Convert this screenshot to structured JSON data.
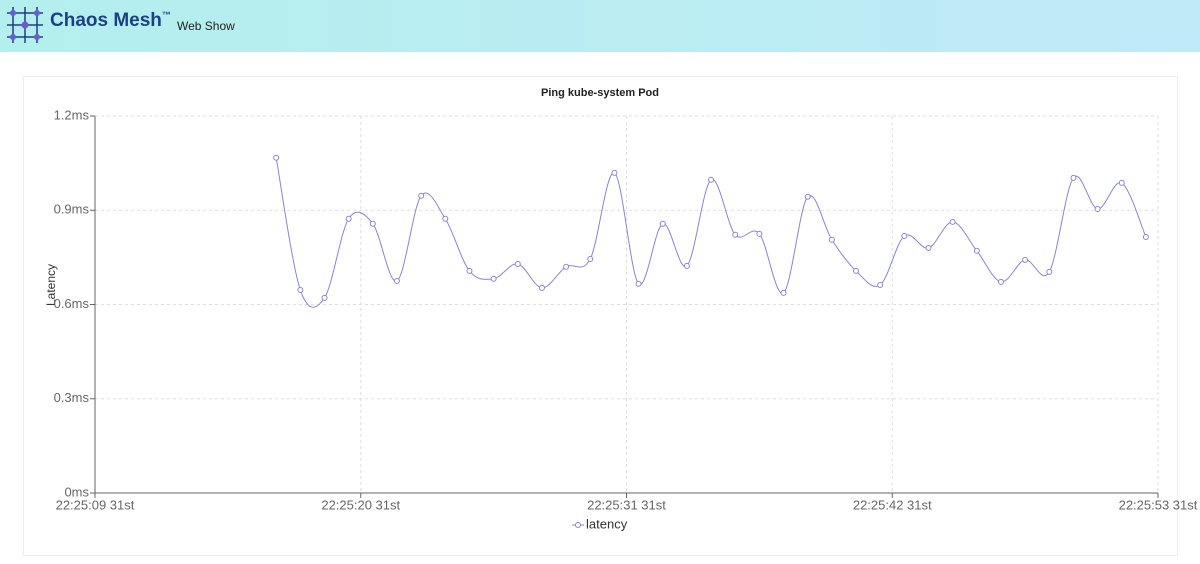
{
  "header": {
    "brand": "Chaos Mesh",
    "trademark": "™",
    "link": "Web Show"
  },
  "chart_data": {
    "type": "line",
    "title": "Ping kube-system Pod",
    "y_label": "Latency",
    "xticks": [
      {
        "value": 9,
        "label": "22:25:09 31st"
      },
      {
        "value": 20,
        "label": "22:25:20 31st"
      },
      {
        "value": 31,
        "label": "22:25:31 31st"
      },
      {
        "value": 42,
        "label": "22:25:42 31st"
      },
      {
        "value": 53,
        "label": "22:25:53 31st"
      }
    ],
    "xlim": [
      9,
      53
    ],
    "yticks": [
      {
        "value": 0,
        "label": "0ms"
      },
      {
        "value": 0.3,
        "label": "0.3ms"
      },
      {
        "value": 0.6,
        "label": "0.6ms"
      },
      {
        "value": 0.9,
        "label": "0.9ms"
      },
      {
        "value": 1.2,
        "label": "1.2ms"
      }
    ],
    "ylim": [
      0,
      1.2
    ],
    "grid": true,
    "legend": "bottom",
    "x": [
      16.5,
      17.5,
      18.5,
      19.5,
      20.5,
      21.5,
      22.5,
      23.5,
      24.5,
      25.5,
      26.5,
      27.5,
      28.5,
      29.5,
      30.5,
      31.5,
      32.5,
      33.5,
      34.5,
      35.5,
      36.5,
      37.5,
      38.5,
      39.5,
      40.5,
      41.5,
      42.5,
      43.5,
      44.5,
      45.5,
      46.5,
      47.5,
      48.5,
      49.5,
      50.5,
      51.5,
      52.5
    ],
    "series": [
      {
        "name": "latency",
        "color": "#8884d8",
        "values": [
          1.067,
          0.646,
          0.621,
          0.873,
          0.857,
          0.675,
          0.946,
          0.873,
          0.707,
          0.682,
          0.729,
          0.653,
          0.72,
          0.745,
          1.019,
          0.666,
          0.857,
          0.723,
          0.997,
          0.822,
          0.825,
          0.637,
          0.943,
          0.806,
          0.707,
          0.662,
          0.818,
          0.78,
          0.863,
          0.771,
          0.672,
          0.742,
          0.704,
          1.003,
          0.904,
          0.987,
          0.815
        ]
      }
    ]
  }
}
